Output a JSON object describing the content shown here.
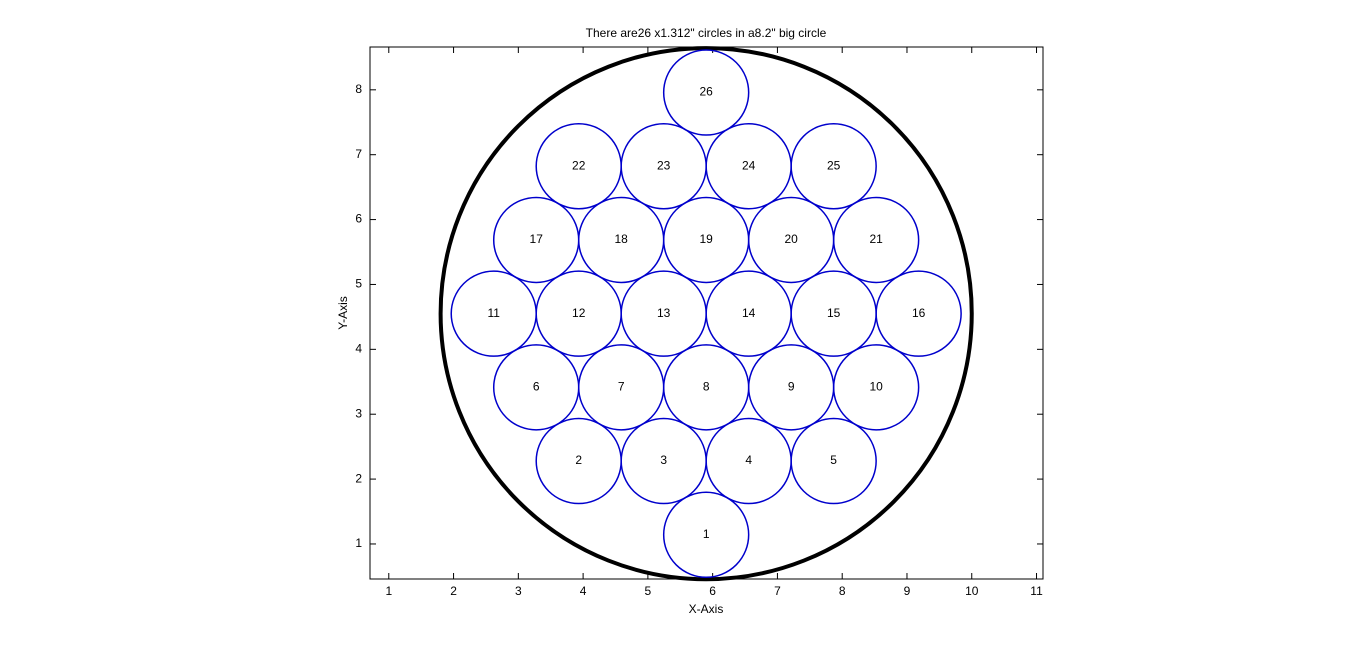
{
  "chart_data": {
    "type": "circles",
    "title": "There are26 x1.312\" circles in a8.2\" big circle",
    "x_label": "X-Axis",
    "y_label": "Y-Axis",
    "xlim": [
      0.71,
      11.1
    ],
    "ylim": [
      0.46,
      8.66
    ],
    "xticks": [
      1,
      2,
      3,
      4,
      5,
      6,
      7,
      8,
      9,
      10,
      11
    ],
    "yticks": [
      1,
      2,
      3,
      4,
      5,
      6,
      7,
      8
    ],
    "big_circle": {
      "x": 5.9,
      "y": 4.55,
      "diameter": 8.2,
      "color": "#000000"
    },
    "circles": {
      "color": "#0000cc",
      "diameter": 1.312,
      "labels": [
        "1",
        "2",
        "3",
        "4",
        "5",
        "6",
        "7",
        "8",
        "9",
        "10",
        "11",
        "12",
        "13",
        "14",
        "15",
        "16",
        "17",
        "18",
        "19",
        "20",
        "21",
        "22",
        "23",
        "24",
        "25",
        "26"
      ],
      "x": [
        5.9,
        3.932,
        5.244,
        6.556,
        7.868,
        3.276,
        4.588,
        5.9,
        7.212,
        8.524,
        2.62,
        3.932,
        5.244,
        6.556,
        7.868,
        9.18,
        3.276,
        4.588,
        5.9,
        7.212,
        8.524,
        3.932,
        5.244,
        6.556,
        7.868,
        5.9
      ],
      "y": [
        1.142,
        2.278,
        2.278,
        2.278,
        2.278,
        3.414,
        3.414,
        3.414,
        3.414,
        3.414,
        4.55,
        4.55,
        4.55,
        4.55,
        4.55,
        4.55,
        5.686,
        5.686,
        5.686,
        5.686,
        5.686,
        6.822,
        6.822,
        6.822,
        6.822,
        7.958
      ]
    }
  }
}
